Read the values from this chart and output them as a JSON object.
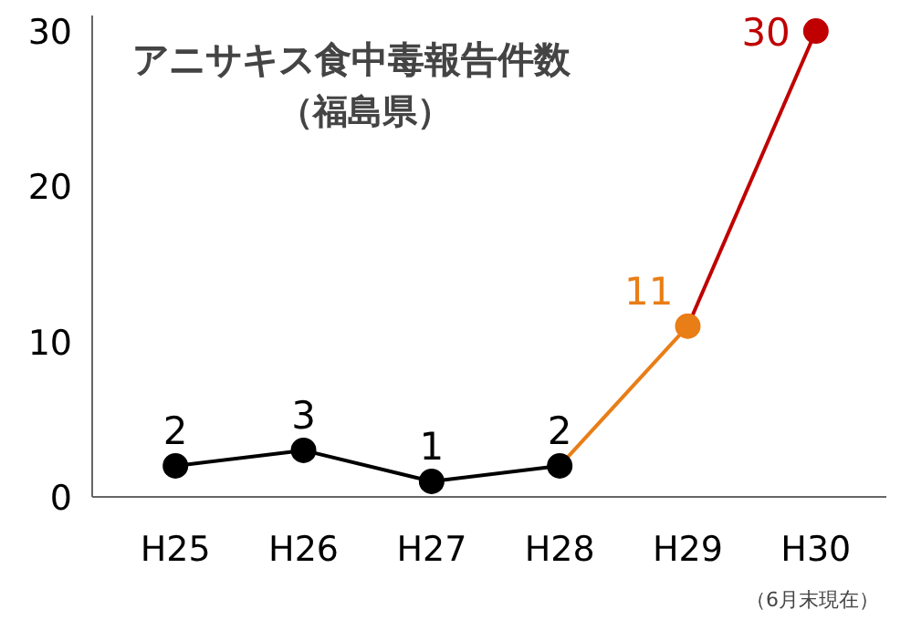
{
  "chart_data": {
    "type": "line",
    "title": "アニサキス食中毒報告件数",
    "subtitle": "（福島県）",
    "categories": [
      "H25",
      "H26",
      "H27",
      "H28",
      "H29",
      "H30"
    ],
    "series": [
      {
        "color": "#000000",
        "values": [
          2,
          3,
          1,
          2,
          null,
          null
        ],
        "value_labels": [
          "2",
          "3",
          "1",
          "2",
          null,
          null
        ]
      },
      {
        "color": "#e97d16",
        "values": [
          null,
          null,
          null,
          2,
          11,
          null
        ],
        "value_labels": [
          null,
          null,
          null,
          null,
          "11",
          null
        ]
      },
      {
        "color": "#c00000",
        "values": [
          null,
          null,
          null,
          null,
          11,
          30
        ],
        "value_labels": [
          null,
          null,
          null,
          null,
          null,
          "30"
        ]
      }
    ],
    "ylim": [
      0,
      31
    ],
    "yticks": [
      0,
      10,
      20,
      30
    ],
    "grid": false,
    "marker": "circle",
    "line_style": "solid",
    "annotations": [
      "（6月末現在）"
    ]
  }
}
